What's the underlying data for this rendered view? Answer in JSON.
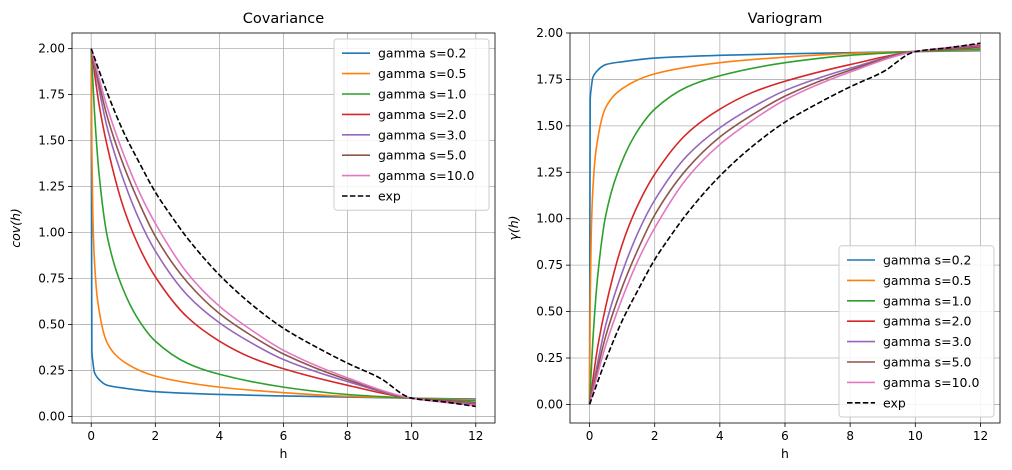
{
  "chart_data": [
    {
      "type": "line",
      "title": "Covariance",
      "xlabel": "h",
      "ylabel": "cov(h)",
      "xlim": [
        -0.6,
        12.6
      ],
      "ylim": [
        -0.035,
        2.085
      ],
      "xticks": [
        "0",
        "2",
        "4",
        "6",
        "8",
        "10",
        "12"
      ],
      "yticks": [
        "0.00",
        "0.25",
        "0.50",
        "0.75",
        "1.00",
        "1.25",
        "1.50",
        "1.75",
        "2.00"
      ],
      "grid": true,
      "legend_position": "top-right",
      "series": [
        {
          "name": "gamma s=0.2",
          "color": "#1f77b4",
          "style": "solid",
          "x": [
            0,
            0.02,
            0.05,
            0.1,
            0.2,
            0.5,
            1,
            2,
            4,
            6,
            8,
            10,
            12
          ],
          "y": [
            2.0,
            0.36,
            0.3,
            0.24,
            0.21,
            0.17,
            0.155,
            0.135,
            0.12,
            0.112,
            0.106,
            0.1,
            0.095
          ]
        },
        {
          "name": "gamma s=0.5",
          "color": "#ff7f0e",
          "style": "solid",
          "x": [
            0,
            0.02,
            0.05,
            0.1,
            0.2,
            0.5,
            1,
            2,
            4,
            6,
            8,
            10,
            12
          ],
          "y": [
            2.0,
            1.45,
            1.1,
            0.85,
            0.63,
            0.4,
            0.3,
            0.22,
            0.16,
            0.13,
            0.11,
            0.1,
            0.09
          ]
        },
        {
          "name": "gamma s=1.0",
          "color": "#2ca02c",
          "style": "solid",
          "x": [
            0,
            0.1,
            0.25,
            0.5,
            1,
            1.5,
            2,
            3,
            4,
            6,
            8,
            10,
            12
          ],
          "y": [
            2.0,
            1.66,
            1.31,
            0.98,
            0.69,
            0.52,
            0.41,
            0.29,
            0.23,
            0.16,
            0.12,
            0.1,
            0.085
          ]
        },
        {
          "name": "gamma s=2.0",
          "color": "#d62728",
          "style": "solid",
          "x": [
            0,
            0.25,
            0.5,
            1,
            1.5,
            2,
            3,
            4,
            5,
            6,
            8,
            10,
            12
          ],
          "y": [
            2.0,
            1.69,
            1.47,
            1.14,
            0.92,
            0.76,
            0.54,
            0.41,
            0.32,
            0.26,
            0.17,
            0.1,
            0.075
          ]
        },
        {
          "name": "gamma s=3.0",
          "color": "#9467bd",
          "style": "solid",
          "x": [
            0,
            0.5,
            1,
            1.5,
            2,
            3,
            4,
            5,
            6,
            8,
            10,
            12
          ],
          "y": [
            2.0,
            1.57,
            1.29,
            1.07,
            0.9,
            0.66,
            0.51,
            0.4,
            0.31,
            0.19,
            0.1,
            0.07
          ]
        },
        {
          "name": "gamma s=5.0",
          "color": "#8c564b",
          "style": "solid",
          "x": [
            0,
            0.5,
            1,
            1.5,
            2,
            3,
            4,
            5,
            6,
            8,
            10,
            12
          ],
          "y": [
            2.0,
            1.63,
            1.37,
            1.16,
            0.98,
            0.73,
            0.56,
            0.44,
            0.34,
            0.2,
            0.1,
            0.065
          ]
        },
        {
          "name": "gamma s=10.0",
          "color": "#e377c2",
          "style": "solid",
          "x": [
            0,
            0.5,
            1,
            1.5,
            2,
            3,
            4,
            5,
            6,
            8,
            10,
            12
          ],
          "y": [
            2.0,
            1.68,
            1.43,
            1.22,
            1.05,
            0.78,
            0.6,
            0.47,
            0.36,
            0.21,
            0.1,
            0.06
          ]
        },
        {
          "name": "exp",
          "color": "#000000",
          "style": "dashed",
          "x": [
            0,
            0.5,
            1,
            1.5,
            2,
            2.5,
            3,
            4,
            5,
            6,
            7,
            8,
            9,
            10,
            11,
            12
          ],
          "y": [
            2.0,
            1.76,
            1.55,
            1.38,
            1.22,
            1.09,
            0.97,
            0.77,
            0.61,
            0.48,
            0.38,
            0.29,
            0.21,
            0.1,
            0.08,
            0.055
          ]
        }
      ]
    },
    {
      "type": "line",
      "title": "Variogram",
      "xlabel": "h",
      "ylabel": "γ(h)",
      "xlim": [
        -0.6,
        12.6
      ],
      "ylim": [
        -0.1,
        2.0
      ],
      "xticks": [
        "0",
        "2",
        "4",
        "6",
        "8",
        "10",
        "12"
      ],
      "yticks": [
        "0.00",
        "0.25",
        "0.50",
        "0.75",
        "1.00",
        "1.25",
        "1.50",
        "1.75",
        "2.00"
      ],
      "grid": true,
      "legend_position": "bottom-right",
      "series": [
        {
          "name": "gamma s=0.2",
          "color": "#1f77b4",
          "style": "solid",
          "x": [
            0,
            0.02,
            0.05,
            0.1,
            0.2,
            0.5,
            1,
            2,
            4,
            6,
            8,
            10,
            12
          ],
          "y": [
            0.0,
            1.64,
            1.7,
            1.76,
            1.79,
            1.83,
            1.845,
            1.865,
            1.88,
            1.888,
            1.894,
            1.9,
            1.905
          ]
        },
        {
          "name": "gamma s=0.5",
          "color": "#ff7f0e",
          "style": "solid",
          "x": [
            0,
            0.02,
            0.05,
            0.1,
            0.2,
            0.5,
            1,
            2,
            4,
            6,
            8,
            10,
            12
          ],
          "y": [
            0.0,
            0.55,
            0.9,
            1.15,
            1.37,
            1.6,
            1.7,
            1.78,
            1.84,
            1.87,
            1.89,
            1.9,
            1.91
          ]
        },
        {
          "name": "gamma s=1.0",
          "color": "#2ca02c",
          "style": "solid",
          "x": [
            0,
            0.1,
            0.25,
            0.5,
            1,
            1.5,
            2,
            3,
            4,
            6,
            8,
            10,
            12
          ],
          "y": [
            0.0,
            0.34,
            0.69,
            1.02,
            1.31,
            1.48,
            1.59,
            1.71,
            1.77,
            1.84,
            1.88,
            1.9,
            1.915
          ]
        },
        {
          "name": "gamma s=2.0",
          "color": "#d62728",
          "style": "solid",
          "x": [
            0,
            0.25,
            0.5,
            1,
            1.5,
            2,
            3,
            4,
            5,
            6,
            8,
            10,
            12
          ],
          "y": [
            0.0,
            0.31,
            0.53,
            0.86,
            1.08,
            1.24,
            1.46,
            1.59,
            1.68,
            1.74,
            1.83,
            1.9,
            1.925
          ]
        },
        {
          "name": "gamma s=3.0",
          "color": "#9467bd",
          "style": "solid",
          "x": [
            0,
            0.5,
            1,
            1.5,
            2,
            3,
            4,
            5,
            6,
            8,
            10,
            12
          ],
          "y": [
            0.0,
            0.43,
            0.71,
            0.93,
            1.1,
            1.34,
            1.49,
            1.6,
            1.69,
            1.81,
            1.9,
            1.93
          ]
        },
        {
          "name": "gamma s=5.0",
          "color": "#8c564b",
          "style": "solid",
          "x": [
            0,
            0.5,
            1,
            1.5,
            2,
            3,
            4,
            5,
            6,
            8,
            10,
            12
          ],
          "y": [
            0.0,
            0.37,
            0.63,
            0.84,
            1.02,
            1.27,
            1.44,
            1.56,
            1.66,
            1.8,
            1.9,
            1.935
          ]
        },
        {
          "name": "gamma s=10.0",
          "color": "#e377c2",
          "style": "solid",
          "x": [
            0,
            0.5,
            1,
            1.5,
            2,
            3,
            4,
            5,
            6,
            8,
            10,
            12
          ],
          "y": [
            0.0,
            0.32,
            0.57,
            0.78,
            0.95,
            1.22,
            1.4,
            1.53,
            1.64,
            1.79,
            1.9,
            1.94
          ]
        },
        {
          "name": "exp",
          "color": "#000000",
          "style": "dashed",
          "x": [
            0,
            0.5,
            1,
            1.5,
            2,
            2.5,
            3,
            4,
            5,
            6,
            7,
            8,
            9,
            10,
            11,
            12
          ],
          "y": [
            0.0,
            0.24,
            0.45,
            0.62,
            0.78,
            0.91,
            1.03,
            1.23,
            1.39,
            1.52,
            1.62,
            1.71,
            1.79,
            1.9,
            1.92,
            1.945
          ]
        }
      ]
    }
  ]
}
